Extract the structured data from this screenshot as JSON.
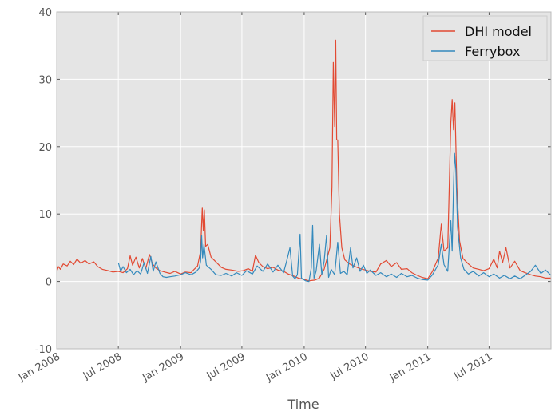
{
  "chart_data": {
    "type": "line",
    "title": "",
    "xlabel": "Time",
    "ylabel": "",
    "x_axis": {
      "type": "date",
      "range": [
        "2008-01-01",
        "2011-12-31"
      ],
      "ticks": [
        {
          "date": "2008-01-01",
          "label": "Jan 2008"
        },
        {
          "date": "2008-07-01",
          "label": "Jul 2008"
        },
        {
          "date": "2009-01-01",
          "label": "Jan 2009"
        },
        {
          "date": "2009-07-01",
          "label": "Jul 2009"
        },
        {
          "date": "2010-01-01",
          "label": "Jan 2010"
        },
        {
          "date": "2010-07-01",
          "label": "Jul 2010"
        },
        {
          "date": "2011-01-01",
          "label": "Jan 2011"
        },
        {
          "date": "2011-07-01",
          "label": "Jul 2011"
        }
      ]
    },
    "ylim": [
      -10,
      40
    ],
    "yticks": [
      -10,
      0,
      10,
      20,
      30,
      40
    ],
    "grid": true,
    "background": "#e5e5e5",
    "legend_position": "top-right",
    "series": [
      {
        "name": "DHI model",
        "color": "#e24a33",
        "points": [
          [
            "2008-01-01",
            1.5
          ],
          [
            "2008-01-06",
            2.2
          ],
          [
            "2008-01-12",
            1.8
          ],
          [
            "2008-01-20",
            2.6
          ],
          [
            "2008-02-01",
            2.3
          ],
          [
            "2008-02-10",
            3.0
          ],
          [
            "2008-02-20",
            2.5
          ],
          [
            "2008-03-01",
            3.3
          ],
          [
            "2008-03-12",
            2.7
          ],
          [
            "2008-03-25",
            3.1
          ],
          [
            "2008-04-05",
            2.6
          ],
          [
            "2008-04-20",
            2.9
          ],
          [
            "2008-05-01",
            2.2
          ],
          [
            "2008-05-15",
            1.8
          ],
          [
            "2008-06-01",
            1.6
          ],
          [
            "2008-06-15",
            1.4
          ],
          [
            "2008-07-01",
            1.5
          ],
          [
            "2008-07-15",
            1.3
          ],
          [
            "2008-07-28",
            1.9
          ],
          [
            "2008-08-05",
            3.8
          ],
          [
            "2008-08-12",
            2.4
          ],
          [
            "2008-08-22",
            3.6
          ],
          [
            "2008-09-01",
            2.0
          ],
          [
            "2008-09-10",
            3.4
          ],
          [
            "2008-09-20",
            1.9
          ],
          [
            "2008-10-01",
            4.0
          ],
          [
            "2008-10-10",
            2.6
          ],
          [
            "2008-10-20",
            2.0
          ],
          [
            "2008-11-01",
            1.6
          ],
          [
            "2008-11-15",
            1.4
          ],
          [
            "2008-12-01",
            1.2
          ],
          [
            "2008-12-15",
            1.5
          ],
          [
            "2009-01-01",
            1.1
          ],
          [
            "2009-01-15",
            1.4
          ],
          [
            "2009-02-01",
            1.3
          ],
          [
            "2009-02-10",
            1.8
          ],
          [
            "2009-02-20",
            2.3
          ],
          [
            "2009-03-01",
            4.5
          ],
          [
            "2009-03-06",
            11.0
          ],
          [
            "2009-03-09",
            7.5
          ],
          [
            "2009-03-12",
            10.6
          ],
          [
            "2009-03-16",
            5.2
          ],
          [
            "2009-03-22",
            5.5
          ],
          [
            "2009-04-01",
            3.6
          ],
          [
            "2009-04-15",
            2.9
          ],
          [
            "2009-05-01",
            2.1
          ],
          [
            "2009-05-15",
            1.8
          ],
          [
            "2009-06-01",
            1.7
          ],
          [
            "2009-06-20",
            1.5
          ],
          [
            "2009-07-05",
            1.6
          ],
          [
            "2009-07-20",
            1.9
          ],
          [
            "2009-08-01",
            1.5
          ],
          [
            "2009-08-10",
            3.9
          ],
          [
            "2009-08-20",
            2.8
          ],
          [
            "2009-09-01",
            2.2
          ],
          [
            "2009-09-15",
            1.9
          ],
          [
            "2009-10-01",
            2.1
          ],
          [
            "2009-10-15",
            1.7
          ],
          [
            "2009-11-01",
            1.5
          ],
          [
            "2009-11-15",
            1.1
          ],
          [
            "2009-12-01",
            0.8
          ],
          [
            "2009-12-15",
            0.5
          ],
          [
            "2010-01-01",
            0.3
          ],
          [
            "2010-01-15",
            0.1
          ],
          [
            "2010-02-01",
            0.2
          ],
          [
            "2010-02-15",
            0.5
          ],
          [
            "2010-03-01",
            1.8
          ],
          [
            "2010-03-10",
            3.5
          ],
          [
            "2010-03-18",
            5.0
          ],
          [
            "2010-03-24",
            14.0
          ],
          [
            "2010-03-28",
            32.5
          ],
          [
            "2010-04-01",
            23.0
          ],
          [
            "2010-04-04",
            35.8
          ],
          [
            "2010-04-07",
            21.0
          ],
          [
            "2010-04-10",
            21.0
          ],
          [
            "2010-04-15",
            10.0
          ],
          [
            "2010-04-22",
            5.0
          ],
          [
            "2010-05-01",
            3.2
          ],
          [
            "2010-05-15",
            2.6
          ],
          [
            "2010-06-01",
            2.2
          ],
          [
            "2010-06-15",
            1.9
          ],
          [
            "2010-07-01",
            1.7
          ],
          [
            "2010-07-15",
            1.5
          ],
          [
            "2010-08-01",
            1.4
          ],
          [
            "2010-08-15",
            2.6
          ],
          [
            "2010-09-01",
            3.1
          ],
          [
            "2010-09-15",
            2.2
          ],
          [
            "2010-10-01",
            2.8
          ],
          [
            "2010-10-15",
            1.8
          ],
          [
            "2010-11-01",
            1.9
          ],
          [
            "2010-11-15",
            1.3
          ],
          [
            "2010-12-01",
            0.9
          ],
          [
            "2010-12-15",
            0.6
          ],
          [
            "2011-01-01",
            0.4
          ],
          [
            "2011-01-15",
            1.5
          ],
          [
            "2011-02-01",
            3.5
          ],
          [
            "2011-02-10",
            8.5
          ],
          [
            "2011-02-18",
            4.5
          ],
          [
            "2011-03-01",
            5.0
          ],
          [
            "2011-03-10",
            23.5
          ],
          [
            "2011-03-14",
            27.0
          ],
          [
            "2011-03-18",
            22.5
          ],
          [
            "2011-03-22",
            26.5
          ],
          [
            "2011-03-28",
            14.0
          ],
          [
            "2011-04-05",
            6.0
          ],
          [
            "2011-04-15",
            3.4
          ],
          [
            "2011-05-01",
            2.6
          ],
          [
            "2011-05-15",
            2.0
          ],
          [
            "2011-06-01",
            1.8
          ],
          [
            "2011-06-15",
            1.6
          ],
          [
            "2011-07-01",
            1.9
          ],
          [
            "2011-07-15",
            3.3
          ],
          [
            "2011-07-25",
            2.0
          ],
          [
            "2011-08-01",
            4.5
          ],
          [
            "2011-08-10",
            2.8
          ],
          [
            "2011-08-20",
            5.0
          ],
          [
            "2011-09-01",
            2.0
          ],
          [
            "2011-09-15",
            3.0
          ],
          [
            "2011-10-01",
            1.6
          ],
          [
            "2011-10-15",
            1.3
          ],
          [
            "2011-11-01",
            1.0
          ],
          [
            "2011-11-15",
            0.8
          ],
          [
            "2011-12-01",
            0.7
          ],
          [
            "2011-12-15",
            0.5
          ],
          [
            "2011-12-31",
            0.5
          ]
        ]
      },
      {
        "name": "Ferrybox",
        "color": "#348abd",
        "points": [
          [
            "2008-07-01",
            2.8
          ],
          [
            "2008-07-08",
            1.5
          ],
          [
            "2008-07-15",
            2.2
          ],
          [
            "2008-07-25",
            1.3
          ],
          [
            "2008-08-05",
            1.8
          ],
          [
            "2008-08-15",
            1.0
          ],
          [
            "2008-08-25",
            1.6
          ],
          [
            "2008-09-05",
            1.1
          ],
          [
            "2008-09-15",
            2.8
          ],
          [
            "2008-09-25",
            1.2
          ],
          [
            "2008-10-05",
            3.7
          ],
          [
            "2008-10-12",
            1.5
          ],
          [
            "2008-10-20",
            2.9
          ],
          [
            "2008-11-01",
            1.2
          ],
          [
            "2008-11-10",
            0.7
          ],
          [
            "2008-11-20",
            0.6
          ],
          [
            "2008-12-01",
            0.7
          ],
          [
            "2008-12-15",
            0.8
          ],
          [
            "2009-01-01",
            1.0
          ],
          [
            "2009-01-15",
            1.3
          ],
          [
            "2009-02-01",
            1.0
          ],
          [
            "2009-02-15",
            1.4
          ],
          [
            "2009-02-25",
            2.0
          ],
          [
            "2009-03-01",
            3.0
          ],
          [
            "2009-03-04",
            6.8
          ],
          [
            "2009-03-07",
            3.5
          ],
          [
            "2009-03-11",
            5.5
          ],
          [
            "2009-03-18",
            2.4
          ],
          [
            "2009-04-01",
            1.8
          ],
          [
            "2009-04-15",
            1.0
          ],
          [
            "2009-05-01",
            0.9
          ],
          [
            "2009-05-15",
            1.2
          ],
          [
            "2009-06-01",
            0.8
          ],
          [
            "2009-06-15",
            1.3
          ],
          [
            "2009-07-01",
            0.9
          ],
          [
            "2009-07-15",
            1.6
          ],
          [
            "2009-08-01",
            1.1
          ],
          [
            "2009-08-15",
            2.3
          ],
          [
            "2009-09-01",
            1.5
          ],
          [
            "2009-09-15",
            2.6
          ],
          [
            "2009-10-01",
            1.4
          ],
          [
            "2009-10-15",
            2.4
          ],
          [
            "2009-11-01",
            1.3
          ],
          [
            "2009-11-10",
            3.0
          ],
          [
            "2009-11-20",
            5.0
          ],
          [
            "2009-11-28",
            0.8
          ],
          [
            "2009-12-05",
            0.4
          ],
          [
            "2009-12-12",
            1.0
          ],
          [
            "2009-12-20",
            7.0
          ],
          [
            "2009-12-24",
            0.5
          ],
          [
            "2010-01-05",
            0.1
          ],
          [
            "2010-01-15",
            0.0
          ],
          [
            "2010-01-22",
            2.0
          ],
          [
            "2010-01-26",
            8.3
          ],
          [
            "2010-01-30",
            0.5
          ],
          [
            "2010-02-05",
            1.5
          ],
          [
            "2010-02-15",
            5.5
          ],
          [
            "2010-02-22",
            1.0
          ],
          [
            "2010-03-01",
            3.0
          ],
          [
            "2010-03-08",
            6.8
          ],
          [
            "2010-03-14",
            0.6
          ],
          [
            "2010-03-22",
            1.8
          ],
          [
            "2010-04-01",
            1.0
          ],
          [
            "2010-04-10",
            5.8
          ],
          [
            "2010-04-18",
            1.2
          ],
          [
            "2010-04-28",
            1.5
          ],
          [
            "2010-05-08",
            1.0
          ],
          [
            "2010-05-18",
            5.0
          ],
          [
            "2010-05-25",
            2.0
          ],
          [
            "2010-06-05",
            3.5
          ],
          [
            "2010-06-15",
            1.5
          ],
          [
            "2010-06-25",
            2.4
          ],
          [
            "2010-07-05",
            1.2
          ],
          [
            "2010-07-15",
            1.7
          ],
          [
            "2010-08-01",
            0.9
          ],
          [
            "2010-08-15",
            1.3
          ],
          [
            "2010-09-01",
            0.7
          ],
          [
            "2010-09-15",
            1.1
          ],
          [
            "2010-10-01",
            0.6
          ],
          [
            "2010-10-15",
            1.2
          ],
          [
            "2010-11-01",
            0.7
          ],
          [
            "2010-11-15",
            0.9
          ],
          [
            "2010-12-01",
            0.5
          ],
          [
            "2010-12-15",
            0.3
          ],
          [
            "2011-01-01",
            0.2
          ],
          [
            "2011-01-15",
            1.0
          ],
          [
            "2011-02-01",
            2.5
          ],
          [
            "2011-02-10",
            5.5
          ],
          [
            "2011-02-18",
            2.5
          ],
          [
            "2011-03-01",
            1.5
          ],
          [
            "2011-03-10",
            9.0
          ],
          [
            "2011-03-14",
            4.5
          ],
          [
            "2011-03-18",
            14.0
          ],
          [
            "2011-03-21",
            19.0
          ],
          [
            "2011-03-25",
            16.5
          ],
          [
            "2011-03-30",
            8.0
          ],
          [
            "2011-04-08",
            3.5
          ],
          [
            "2011-04-18",
            1.8
          ],
          [
            "2011-05-01",
            1.1
          ],
          [
            "2011-05-15",
            1.5
          ],
          [
            "2011-06-01",
            0.8
          ],
          [
            "2011-06-15",
            1.3
          ],
          [
            "2011-07-01",
            0.7
          ],
          [
            "2011-07-15",
            1.1
          ],
          [
            "2011-08-01",
            0.5
          ],
          [
            "2011-08-15",
            0.9
          ],
          [
            "2011-09-01",
            0.4
          ],
          [
            "2011-09-15",
            0.8
          ],
          [
            "2011-10-01",
            0.4
          ],
          [
            "2011-10-15",
            0.9
          ],
          [
            "2011-11-01",
            1.5
          ],
          [
            "2011-11-15",
            2.4
          ],
          [
            "2011-12-01",
            1.2
          ],
          [
            "2011-12-15",
            1.7
          ],
          [
            "2011-12-31",
            0.9
          ]
        ]
      }
    ]
  }
}
